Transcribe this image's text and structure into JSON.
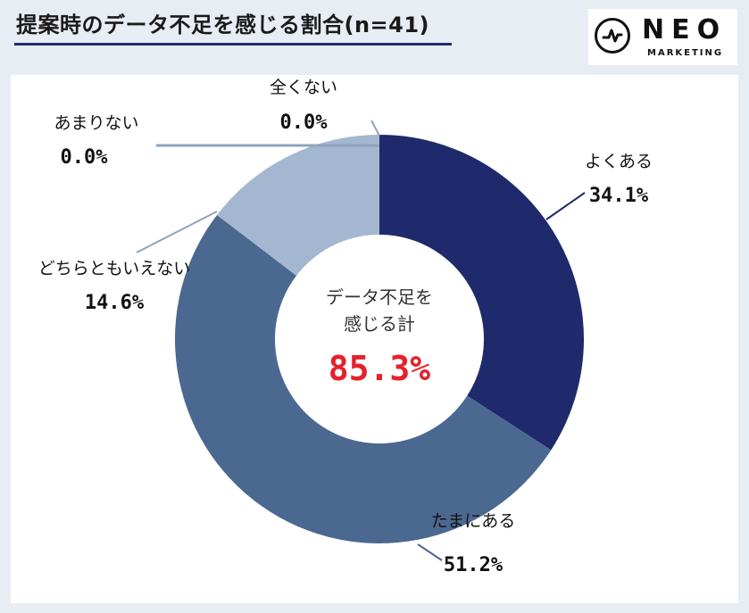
{
  "title": "提案時のデータ不足を感じる割合(n=41)",
  "logo": {
    "name": "NEO",
    "sub": "MARKETING",
    "icon": "pulse-icon"
  },
  "center": {
    "line1": "データ不足を",
    "line2": "感じる計",
    "value": "85.3%"
  },
  "colors": {
    "accent": "#e6212a"
  },
  "chart_data": {
    "type": "pie",
    "variant": "donut",
    "title": "提案時のデータ不足を感じる割合(n=41)",
    "categories": [
      "よくある",
      "たまにある",
      "どちらともいえない",
      "あまりない",
      "全くない"
    ],
    "values": [
      34.1,
      51.2,
      14.6,
      0.0,
      0.0
    ],
    "labels": [
      "34.1%",
      "51.2%",
      "14.6%",
      "0.0%",
      "0.0%"
    ],
    "colors": [
      "#1e2a6b",
      "#4b6891",
      "#a3b7d0",
      "#c9d5e4",
      "#dfe6ef"
    ]
  }
}
